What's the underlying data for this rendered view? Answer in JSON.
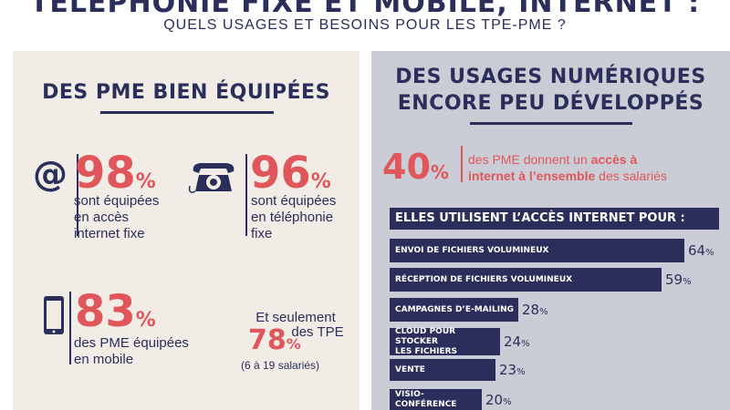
{
  "header": {
    "title": "TÉLÉPHONIE FIXE ET MOBILE, INTERNET :",
    "subtitle": "QUELS USAGES ET BESOINS POUR LES TPE-PME ?"
  },
  "left": {
    "heading": "DES PME BIEN ÉQUIPÉES",
    "stats": [
      {
        "value": "98",
        "unit": "%",
        "lines": [
          "sont équipées",
          "en accès",
          "internet fixe"
        ],
        "icon": "at-icon"
      },
      {
        "value": "96",
        "unit": "%",
        "lines": [
          "sont équipées",
          "en téléphonie",
          "fixe"
        ],
        "icon": "phone-icon"
      },
      {
        "value": "83",
        "unit": "%",
        "lines": [
          "des PME équipées",
          "en mobile"
        ],
        "icon": "mobile-icon"
      }
    ],
    "tpe": {
      "line1": "Et seulement",
      "line2": "des TPE",
      "value": "78",
      "unit": "%",
      "note": "(6 à 19 salariés)"
    }
  },
  "right": {
    "heading_line1": "DES USAGES NUMÉRIQUES",
    "heading_line2": "ENCORE PEU DÉVELOPPÉS",
    "highlight": {
      "value": "40",
      "unit": "%",
      "text_plain1": "des PME donnent un ",
      "text_bold1": "accès à",
      "text_bold2": "internet à l’ensemble",
      "text_plain2": " des salariés"
    },
    "usage_title": "ELLES UTILISENT L’ACCÈS INTERNET POUR :"
  },
  "chart_data": {
    "type": "bar",
    "title": "ELLES UTILISENT L’ACCÈS INTERNET POUR :",
    "categories": [
      "ENVOI DE FICHIERS VOLUMINEUX",
      "RÉCEPTION DE FICHIERS VOLUMINEUX",
      "CAMPAGNES D’E-MAILING",
      "CLOUD POUR STOCKER LES FICHIERS",
      "VENTE",
      "VISIO-CONFÉRENCE"
    ],
    "category_lines": [
      [
        "ENVOI DE FICHIERS VOLUMINEUX"
      ],
      [
        "RÉCEPTION DE FICHIERS VOLUMINEUX"
      ],
      [
        "CAMPAGNES D’E-MAILING"
      ],
      [
        "CLOUD POUR STOCKER",
        "LES FICHIERS"
      ],
      [
        "VENTE"
      ],
      [
        "VISIO-CONFÉRENCE"
      ]
    ],
    "values": [
      64,
      59,
      28,
      24,
      23,
      20
    ],
    "unit": "%",
    "orientation": "horizontal",
    "bar_color": "#2b2e5a"
  }
}
